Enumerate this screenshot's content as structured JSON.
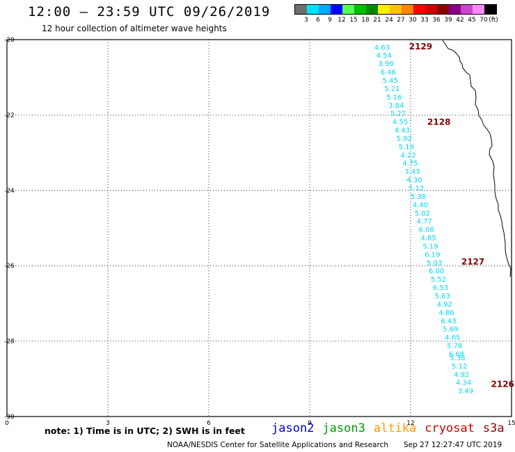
{
  "header": {
    "title": "12:00 – 23:59 UTC 09/26/2019",
    "subtitle": "12 hour collection of altimeter wave heights"
  },
  "legend": {
    "colors": [
      "#6e6e6e",
      "#00e0ff",
      "#00a8ff",
      "#0000ff",
      "#55ff55",
      "#00c000",
      "#008800",
      "#ffee00",
      "#ffc000",
      "#ff8800",
      "#ff0000",
      "#cc0000",
      "#880000",
      "#880088",
      "#cc44cc",
      "#ff88ff",
      "#000000"
    ],
    "labels": [
      "3",
      "6",
      "9",
      "12",
      "15",
      "18",
      "21",
      "24",
      "27",
      "30",
      "33",
      "36",
      "39",
      "42",
      "45",
      "70"
    ],
    "unit": "(ft)"
  },
  "axes": {
    "y_labels": [
      "-20",
      "-22",
      "-24",
      "-26",
      "-28",
      "-30"
    ],
    "x_labels": [
      "0",
      "3",
      "6",
      "9",
      "12",
      "15"
    ]
  },
  "track": {
    "color": "#00d8f0",
    "points": [
      {
        "lat": -20.19,
        "v": "4.63"
      },
      {
        "lat": -20.41,
        "v": "4.54"
      },
      {
        "lat": -20.63,
        "v": "3.90"
      },
      {
        "lat": -20.85,
        "v": "6.46"
      },
      {
        "lat": -21.07,
        "v": "5.45"
      },
      {
        "lat": -21.29,
        "v": "5.21"
      },
      {
        "lat": -21.51,
        "v": "5.16"
      },
      {
        "lat": -21.73,
        "v": "3.84"
      },
      {
        "lat": -21.95,
        "v": "5.27"
      },
      {
        "lat": -22.17,
        "v": "4.55"
      },
      {
        "lat": -22.39,
        "v": "4.43"
      },
      {
        "lat": -22.61,
        "v": "5.92"
      },
      {
        "lat": -22.83,
        "v": "5.19"
      },
      {
        "lat": -23.05,
        "v": "4.22"
      },
      {
        "lat": -23.27,
        "v": "4.75"
      },
      {
        "lat": -23.49,
        "v": "3.43"
      },
      {
        "lat": -23.71,
        "v": "4.30"
      },
      {
        "lat": -23.93,
        "v": "5.12"
      },
      {
        "lat": -24.15,
        "v": "5.38"
      },
      {
        "lat": -24.37,
        "v": "4.40"
      },
      {
        "lat": -24.59,
        "v": "5.02"
      },
      {
        "lat": -24.81,
        "v": "4.77"
      },
      {
        "lat": -25.03,
        "v": "6.08"
      },
      {
        "lat": -25.25,
        "v": "4.85"
      },
      {
        "lat": -25.47,
        "v": "5.19"
      },
      {
        "lat": -25.69,
        "v": "6.19"
      },
      {
        "lat": -25.91,
        "v": "5.03"
      },
      {
        "lat": -26.13,
        "v": "6.00"
      },
      {
        "lat": -26.35,
        "v": "5.52"
      },
      {
        "lat": -26.57,
        "v": "6.53"
      },
      {
        "lat": -26.79,
        "v": "5.63"
      },
      {
        "lat": -27.01,
        "v": "4.92"
      },
      {
        "lat": -27.23,
        "v": "4.86"
      },
      {
        "lat": -27.45,
        "v": "6.43"
      },
      {
        "lat": -27.67,
        "v": "5.69"
      },
      {
        "lat": -27.89,
        "v": "4.65"
      },
      {
        "lat": -28.11,
        "v": "5.78"
      },
      {
        "lat": -28.33,
        "v": "6.68"
      },
      {
        "lat": -28.43,
        "v": "5.38"
      },
      {
        "lat": -28.65,
        "v": "5.12"
      },
      {
        "lat": -28.87,
        "v": "4.92"
      },
      {
        "lat": -29.09,
        "v": "4.34"
      },
      {
        "lat": -29.31,
        "v": "3.49"
      }
    ],
    "time_labels": [
      {
        "lat": -20.17,
        "text": "2129"
      },
      {
        "lat": -22.17,
        "text": "2128"
      },
      {
        "lat": -25.88,
        "text": "2127"
      },
      {
        "lat": -29.12,
        "text": "2126"
      }
    ],
    "time_label_color": "#800000"
  },
  "footer": {
    "note": "note: 1) Time is in UTC; 2) SWH is in feet",
    "satellites": [
      {
        "name": "jason2",
        "color": "#0000cc"
      },
      {
        "name": "jason3",
        "color": "#009900"
      },
      {
        "name": "altika",
        "color": "#ff9900"
      },
      {
        "name": "cryosat",
        "color": "#cc0000"
      },
      {
        "name": "s3a",
        "color": "#880000"
      }
    ],
    "credit": "NOAA/NESDIS Center for Satellite Applications and Research",
    "timestamp": "Sep 27 12:27:47 UTC 2019"
  }
}
